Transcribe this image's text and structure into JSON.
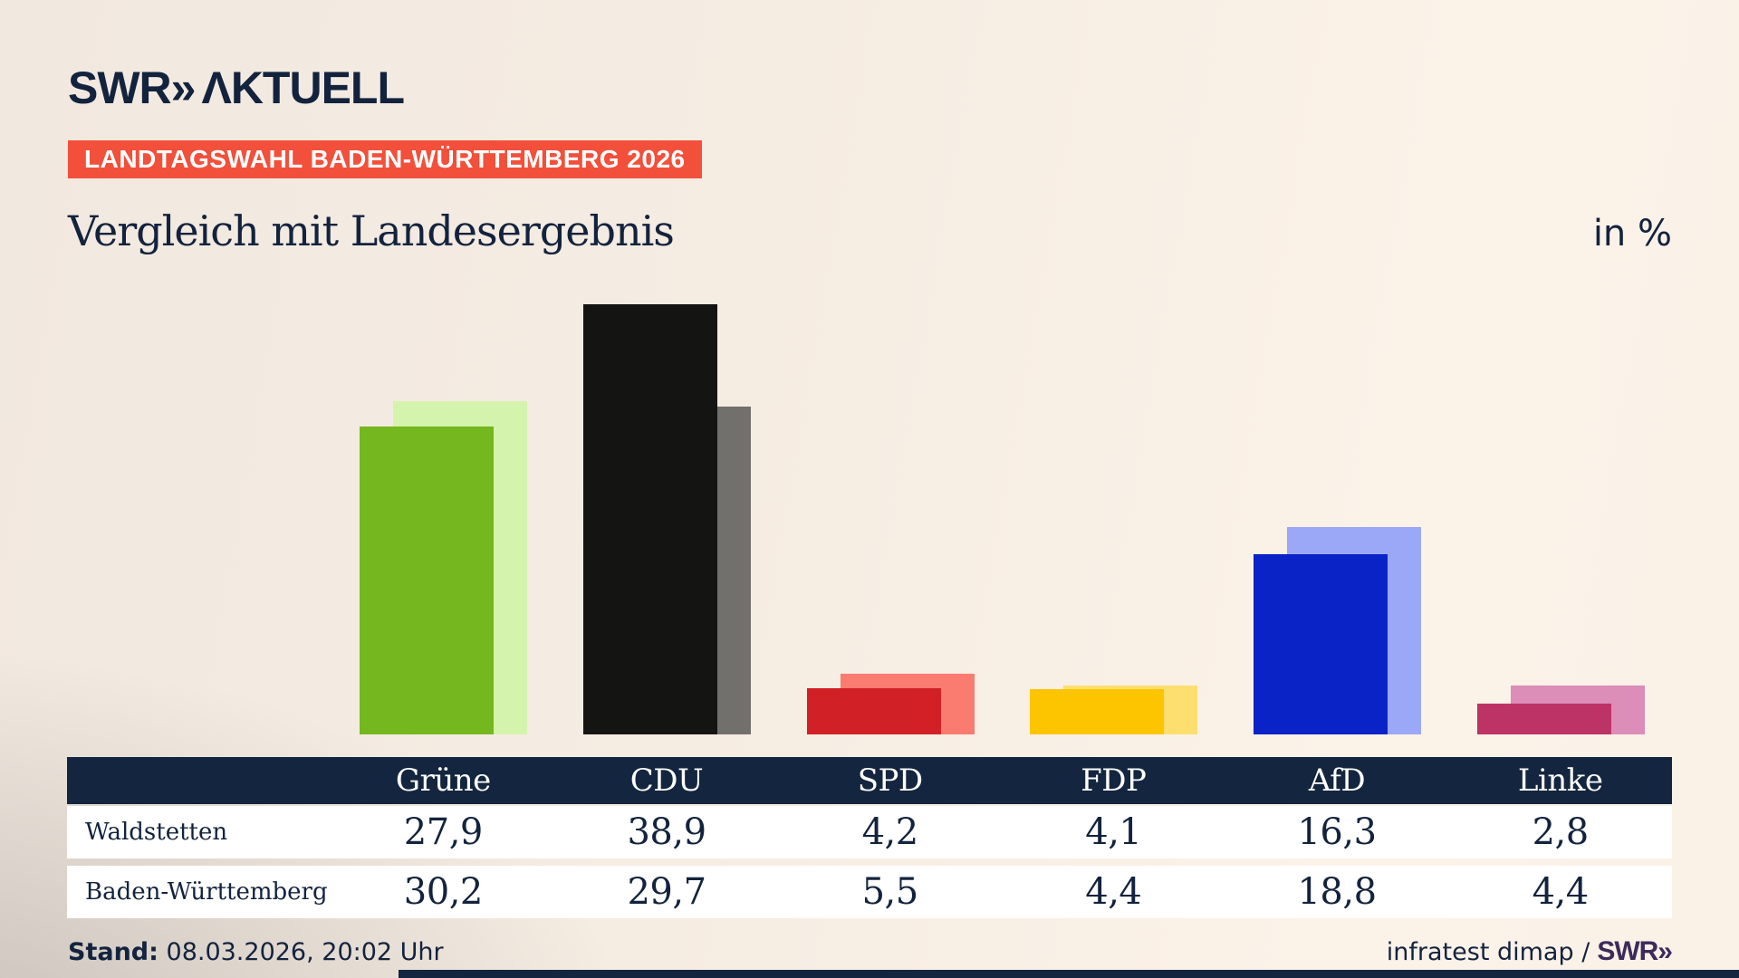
{
  "header": {
    "logo_swr": "SWR",
    "logo_chevrons": "»",
    "logo_aktuell": "ΛKTUELL",
    "badge": "LANDTAGSWAHL BADEN-WÜRTTEMBERG 2026",
    "title": "Vergleich mit Landesergebnis",
    "unit_label": "in %"
  },
  "chart_data": {
    "type": "bar",
    "categories": [
      "Grüne",
      "CDU",
      "SPD",
      "FDP",
      "AfD",
      "Linke"
    ],
    "series": [
      {
        "name": "Waldstetten",
        "role": "front",
        "values": [
          27.9,
          38.9,
          4.2,
          4.1,
          16.3,
          2.8
        ]
      },
      {
        "name": "Baden-Württemberg",
        "role": "back",
        "values": [
          30.2,
          29.7,
          5.5,
          4.4,
          18.8,
          4.4
        ]
      }
    ],
    "party_colors": [
      {
        "party": "Grüne",
        "front": "#74b71e",
        "back": "#d4f3ad"
      },
      {
        "party": "CDU",
        "front": "#141413",
        "back": "#71706d"
      },
      {
        "party": "SPD",
        "front": "#d22027",
        "back": "#fa7b70"
      },
      {
        "party": "FDP",
        "front": "#fdc500",
        "back": "#fcdf6e"
      },
      {
        "party": "AfD",
        "front": "#0a23c7",
        "back": "#9ba8f8"
      },
      {
        "party": "Linke",
        "front": "#bd3366",
        "back": "#dc8db8"
      }
    ],
    "title": "Vergleich mit Landesergebnis",
    "unit": "in %",
    "ylim": [
      0,
      40
    ],
    "grid": false,
    "legend": "table-below"
  },
  "table": {
    "rows": [
      {
        "label": "Waldstetten",
        "values": [
          "27,9",
          "38,9",
          "4,2",
          "4,1",
          "16,3",
          "2,8"
        ]
      },
      {
        "label": "Baden-Württemberg",
        "values": [
          "30,2",
          "29,7",
          "5,5",
          "4,4",
          "18,8",
          "4,4"
        ]
      }
    ]
  },
  "footer": {
    "stand_label": "Stand:",
    "stand_value": "08.03.2026, 20:02 Uhr",
    "source_text": "infratest dimap /",
    "source_logo": "SWR»"
  },
  "colors": {
    "navy": "#13233e",
    "badge_red": "#f2503b",
    "table_header_bg": "#14253f",
    "row_bg": "#ffffff",
    "footer_logo_purple": "#3e2a5a"
  }
}
